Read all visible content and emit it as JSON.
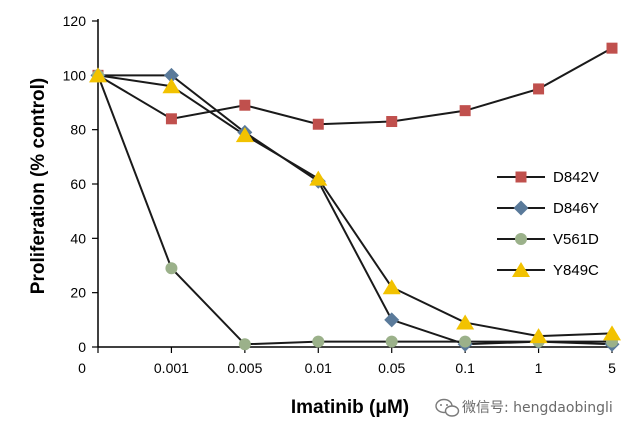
{
  "chart_data": {
    "type": "line",
    "title": "",
    "xlabel": "Imatinib (μM)",
    "ylabel": "Proliferation (% control)",
    "x_categories": [
      "0",
      "0.001",
      "0.005",
      "0.01",
      "0.05",
      "0.1",
      "1",
      "5"
    ],
    "yticks": [
      0,
      20,
      40,
      60,
      80,
      100,
      120
    ],
    "ylim": [
      0,
      120
    ],
    "grid": false,
    "legend_position": "right",
    "series": [
      {
        "name": "D842V",
        "marker": "square",
        "color": "#c0504d",
        "values": [
          100,
          84,
          89,
          82,
          83,
          87,
          95,
          110
        ]
      },
      {
        "name": "D846Y",
        "marker": "diamond",
        "color": "#5a7a9a",
        "values": [
          100,
          100,
          79,
          61,
          10,
          1,
          2,
          1
        ]
      },
      {
        "name": "V561D",
        "marker": "circle",
        "color": "#9bb18a",
        "values": [
          100,
          29,
          1,
          2,
          2,
          2,
          2,
          2
        ]
      },
      {
        "name": "Y849C",
        "marker": "triangle",
        "color": "#f2c200",
        "values": [
          100,
          96,
          78,
          62,
          22,
          9,
          4,
          5
        ]
      }
    ]
  },
  "watermark": {
    "text": "微信号: hengdaobingli",
    "icon": "wechat-icon"
  }
}
